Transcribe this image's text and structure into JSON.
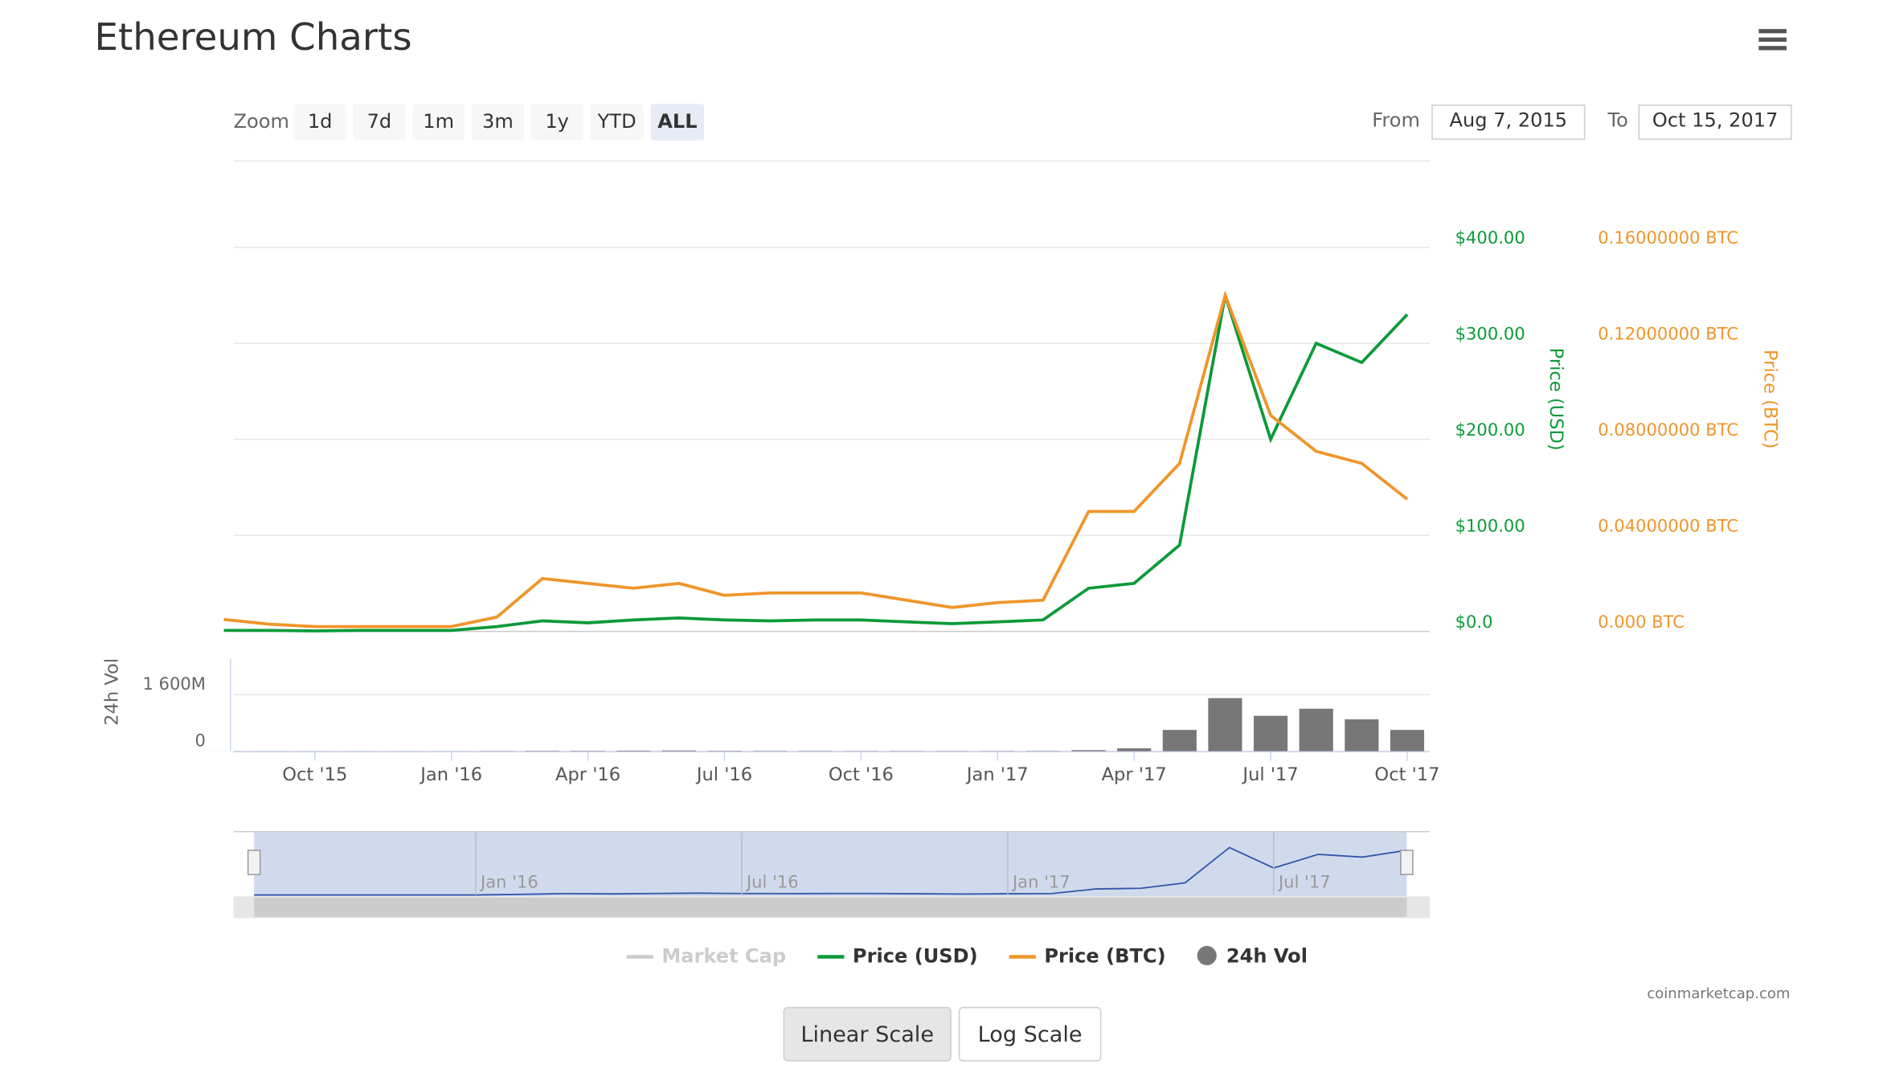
{
  "header": {
    "title": "Ethereum Charts"
  },
  "controls": {
    "zoom_label": "Zoom",
    "zoom_buttons": [
      "1d",
      "7d",
      "1m",
      "3m",
      "1y",
      "YTD",
      "ALL"
    ],
    "zoom_selected": "ALL",
    "from_label": "From",
    "from": "Aug 7, 2015",
    "to_label": "To",
    "to": "Oct 15, 2017",
    "scale_buttons": [
      "Linear Scale",
      "Log Scale"
    ],
    "scale_selected": "Linear Scale"
  },
  "chart_data": {
    "type": "line",
    "x": [
      "Aug '15",
      "Sep '15",
      "Oct '15",
      "Nov '15",
      "Dec '15",
      "Jan '16",
      "Feb '16",
      "Mar '16",
      "Apr '16",
      "May '16",
      "Jun '16",
      "Jul '16",
      "Aug '16",
      "Sep '16",
      "Oct '16",
      "Nov '16",
      "Dec '16",
      "Jan '17",
      "Feb '17",
      "Mar '17",
      "Apr '17",
      "May '17",
      "Jun '17",
      "Jul '17",
      "Aug '17",
      "Sep '17",
      "Oct '17"
    ],
    "xticks": [
      "Oct '15",
      "Jan '16",
      "Apr '16",
      "Jul '16",
      "Oct '16",
      "Jan '17",
      "Apr '17",
      "Jul '17",
      "Oct '17"
    ],
    "series": [
      {
        "name": "Price (USD)",
        "color": "#0c9a3a",
        "axis": "y",
        "values": [
          1,
          1,
          0.5,
          1,
          1,
          1,
          5,
          11,
          9,
          12,
          14,
          12,
          11,
          12,
          12,
          10,
          8,
          10,
          12,
          45,
          50,
          90,
          350,
          200,
          300,
          280,
          330
        ]
      },
      {
        "name": "Price (BTC)",
        "color": "#f0952a",
        "axis": "y2",
        "values": [
          0.005,
          0.003,
          0.002,
          0.002,
          0.002,
          0.002,
          0.006,
          0.022,
          0.02,
          0.018,
          0.02,
          0.015,
          0.016,
          0.016,
          0.016,
          0.013,
          0.01,
          0.012,
          0.013,
          0.05,
          0.05,
          0.07,
          0.14,
          0.09,
          0.075,
          0.07,
          0.055
        ]
      },
      {
        "name": "24h Vol",
        "color": "#777777",
        "axis": "vol",
        "values": [
          1,
          1,
          1,
          1,
          1,
          2,
          5,
          10,
          10,
          15,
          20,
          10,
          8,
          8,
          6,
          6,
          5,
          6,
          8,
          30,
          80,
          600,
          1500,
          1000,
          1200,
          900,
          600
        ]
      }
    ],
    "hidden_series": [
      {
        "name": "Market Cap",
        "color": "#cccccc"
      }
    ],
    "ylabel": "Price (USD)",
    "y2label": "Price (BTC)",
    "vol_label": "24h Vol",
    "ylim": [
      0,
      490
    ],
    "yticks": [
      {
        "value": 0,
        "label": "$0.0"
      },
      {
        "value": 100,
        "label": "$100.00"
      },
      {
        "value": 200,
        "label": "$200.00"
      },
      {
        "value": 300,
        "label": "$300.00"
      },
      {
        "value": 400,
        "label": "$400.00"
      }
    ],
    "y2lim": [
      0,
      0.196
    ],
    "y2ticks": [
      {
        "value": 0,
        "label": "0.000 BTC"
      },
      {
        "value": 0.04,
        "label": "0.04000000 BTC"
      },
      {
        "value": 0.08,
        "label": "0.08000000 BTC"
      },
      {
        "value": 0.12,
        "label": "0.12000000 BTC"
      },
      {
        "value": 0.16,
        "label": "0.16000000 BTC"
      }
    ],
    "vol_lim": [
      0,
      2600
    ],
    "vol_ticks": [
      0,
      {
        "value": 1600,
        "label": "1 600M"
      }
    ],
    "navigator_ticks": [
      "Jan '16",
      "Jul '16",
      "Jan '17",
      "Jul '17"
    ],
    "grid": true,
    "credit": "coinmarketcap.com"
  }
}
